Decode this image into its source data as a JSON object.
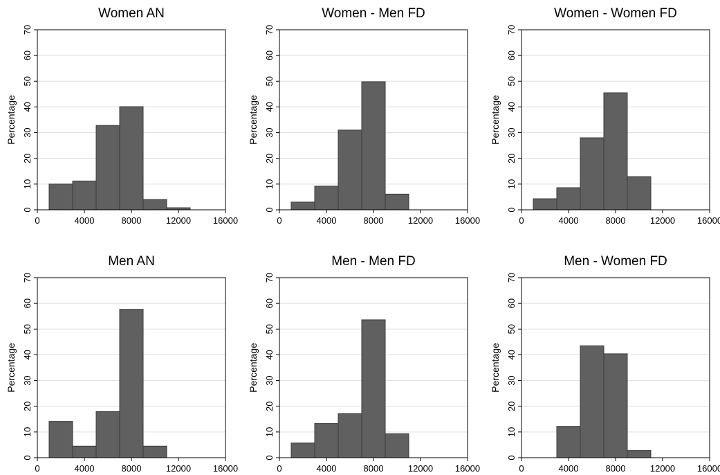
{
  "chart_data": [
    {
      "type": "bar",
      "title": "Women AN",
      "ylabel": "Percentage",
      "xlabel": "",
      "ylim": [
        0,
        70
      ],
      "xlim": [
        0,
        16000
      ],
      "yticks": [
        0,
        10,
        20,
        30,
        40,
        50,
        60,
        70
      ],
      "xticks": [
        0,
        4000,
        8000,
        12000,
        16000
      ],
      "grid": true,
      "bins": [
        {
          "x0": 1000,
          "x1": 3000,
          "value": 10
        },
        {
          "x0": 3000,
          "x1": 5000,
          "value": 11.2
        },
        {
          "x0": 5000,
          "x1": 7000,
          "value": 32.8
        },
        {
          "x0": 7000,
          "x1": 9000,
          "value": 40.1
        },
        {
          "x0": 9000,
          "x1": 11000,
          "value": 4
        },
        {
          "x0": 11000,
          "x1": 13000,
          "value": 0.8
        }
      ]
    },
    {
      "type": "bar",
      "title": "Women - Men FD",
      "ylabel": "Percentage",
      "xlabel": "",
      "ylim": [
        0,
        70
      ],
      "xlim": [
        0,
        16000
      ],
      "yticks": [
        0,
        10,
        20,
        30,
        40,
        50,
        60,
        70
      ],
      "xticks": [
        0,
        4000,
        8000,
        12000,
        16000
      ],
      "grid": true,
      "bins": [
        {
          "x0": 1000,
          "x1": 3000,
          "value": 3
        },
        {
          "x0": 3000,
          "x1": 5000,
          "value": 9.2
        },
        {
          "x0": 5000,
          "x1": 7000,
          "value": 31
        },
        {
          "x0": 7000,
          "x1": 9000,
          "value": 49.8
        },
        {
          "x0": 9000,
          "x1": 11000,
          "value": 6.1
        }
      ]
    },
    {
      "type": "bar",
      "title": "Women - Women FD",
      "ylabel": "Percentage",
      "xlabel": "",
      "ylim": [
        0,
        70
      ],
      "xlim": [
        0,
        16000
      ],
      "yticks": [
        0,
        10,
        20,
        30,
        40,
        50,
        60,
        70
      ],
      "xticks": [
        0,
        4000,
        8000,
        12000,
        16000
      ],
      "grid": true,
      "bins": [
        {
          "x0": 1000,
          "x1": 3000,
          "value": 4.3
        },
        {
          "x0": 3000,
          "x1": 5000,
          "value": 8.6
        },
        {
          "x0": 5000,
          "x1": 7000,
          "value": 28
        },
        {
          "x0": 7000,
          "x1": 9000,
          "value": 45.5
        },
        {
          "x0": 9000,
          "x1": 11000,
          "value": 12.9
        }
      ]
    },
    {
      "type": "bar",
      "title": "Men AN",
      "ylabel": "Percentage",
      "xlabel": "",
      "ylim": [
        0,
        70
      ],
      "xlim": [
        0,
        16000
      ],
      "yticks": [
        0,
        10,
        20,
        30,
        40,
        50,
        60,
        70
      ],
      "xticks": [
        0,
        4000,
        8000,
        12000,
        16000
      ],
      "grid": true,
      "bins": [
        {
          "x0": 1000,
          "x1": 3000,
          "value": 14.1
        },
        {
          "x0": 3000,
          "x1": 5000,
          "value": 4.5
        },
        {
          "x0": 5000,
          "x1": 7000,
          "value": 17.9
        },
        {
          "x0": 7000,
          "x1": 9000,
          "value": 57.7
        },
        {
          "x0": 9000,
          "x1": 11000,
          "value": 4.5
        }
      ]
    },
    {
      "type": "bar",
      "title": "Men - Men FD",
      "ylabel": "Percentage",
      "xlabel": "",
      "ylim": [
        0,
        70
      ],
      "xlim": [
        0,
        16000
      ],
      "yticks": [
        0,
        10,
        20,
        30,
        40,
        50,
        60,
        70
      ],
      "xticks": [
        0,
        4000,
        8000,
        12000,
        16000
      ],
      "grid": true,
      "bins": [
        {
          "x0": 1000,
          "x1": 3000,
          "value": 5.7
        },
        {
          "x0": 3000,
          "x1": 5000,
          "value": 13.3
        },
        {
          "x0": 5000,
          "x1": 7000,
          "value": 17.1
        },
        {
          "x0": 7000,
          "x1": 9000,
          "value": 53.6
        },
        {
          "x0": 9000,
          "x1": 11000,
          "value": 9.3
        }
      ]
    },
    {
      "type": "bar",
      "title": "Men - Women FD",
      "ylabel": "Percentage",
      "xlabel": "",
      "ylim": [
        0,
        70
      ],
      "xlim": [
        0,
        16000
      ],
      "yticks": [
        0,
        10,
        20,
        30,
        40,
        50,
        60,
        70
      ],
      "xticks": [
        0,
        4000,
        8000,
        12000,
        16000
      ],
      "grid": true,
      "bins": [
        {
          "x0": 3000,
          "x1": 5000,
          "value": 12.2
        },
        {
          "x0": 5000,
          "x1": 7000,
          "value": 43.5
        },
        {
          "x0": 7000,
          "x1": 9000,
          "value": 40.4
        },
        {
          "x0": 9000,
          "x1": 11000,
          "value": 2.8
        }
      ]
    }
  ]
}
